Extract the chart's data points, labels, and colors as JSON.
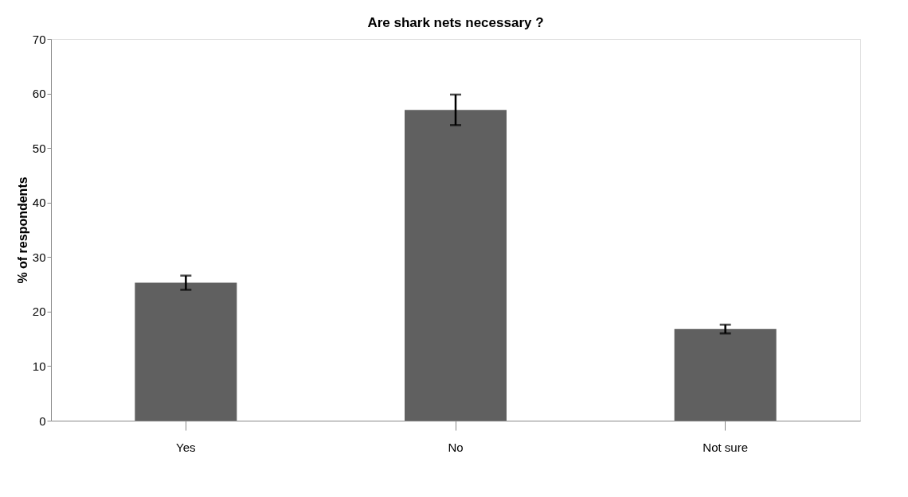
{
  "chart_data": {
    "type": "bar",
    "title": "Are shark nets necessary ?",
    "ylabel": "% of respondents",
    "categories": [
      "Yes",
      "No",
      "Not sure"
    ],
    "values": [
      25.3,
      57.0,
      16.8
    ],
    "errors": [
      1.3,
      2.8,
      0.8
    ],
    "color": "#606060",
    "ylim": [
      0,
      70
    ],
    "yticks": [
      0,
      10,
      20,
      30,
      40,
      50,
      60,
      70
    ],
    "grid": false
  }
}
